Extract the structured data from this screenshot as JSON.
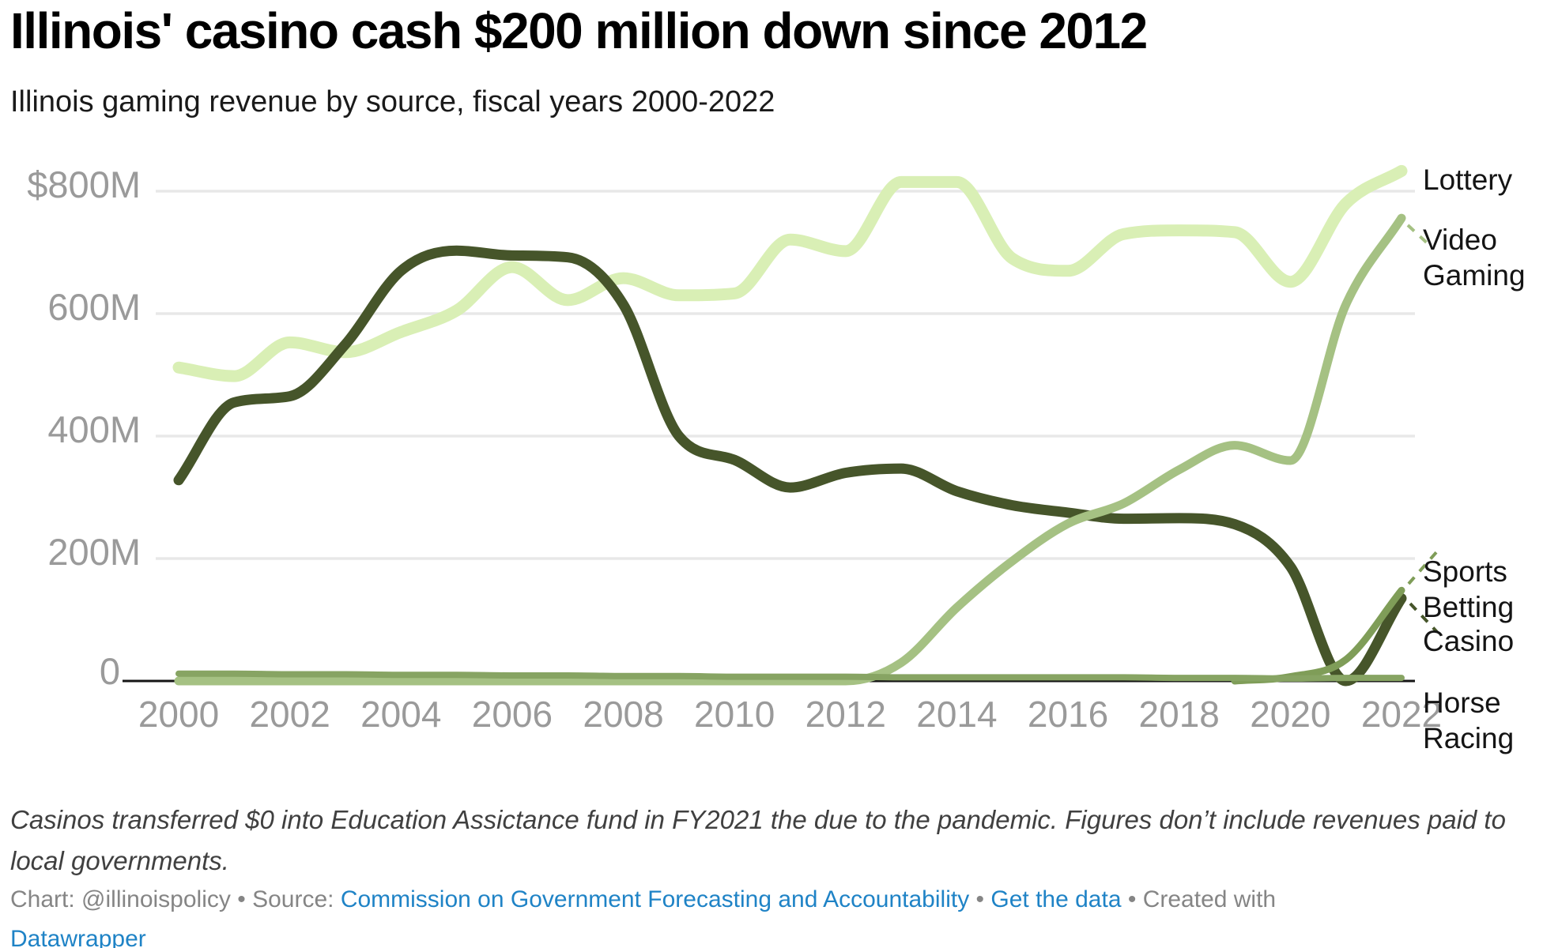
{
  "header": {
    "title": "Illinois' casino cash $200 million down since 2012",
    "subtitle": "Illinois gaming revenue by source, fiscal years 2000-2022"
  },
  "chart_data": {
    "type": "line",
    "title": "Illinois' casino cash $200 million down since 2012",
    "subtitle": "Illinois gaming revenue by source, fiscal years 2000-2022",
    "unit": "USD millions",
    "x": [
      2000,
      2001,
      2002,
      2003,
      2004,
      2005,
      2006,
      2007,
      2008,
      2009,
      2010,
      2011,
      2012,
      2013,
      2014,
      2015,
      2016,
      2017,
      2018,
      2019,
      2020,
      2021,
      2022
    ],
    "x_tick_labels": [
      "2000",
      "2002",
      "2004",
      "2006",
      "2008",
      "2010",
      "2012",
      "2014",
      "2016",
      "2018",
      "2020",
      "2022"
    ],
    "y_axis": {
      "tick_labels": [
        "$800M",
        "600M",
        "400M",
        "200M",
        "0"
      ],
      "tick_values": [
        800,
        600,
        400,
        200,
        0
      ],
      "ylim": [
        0,
        870
      ],
      "grid": true
    },
    "legend_position": "direct-labels-right",
    "series": [
      {
        "name": "Lottery",
        "label_lines": [
          "Lottery"
        ],
        "color": "#d9efb5",
        "stroke_width": 15,
        "values": [
          512,
          498,
          553,
          537,
          570,
          605,
          676,
          622,
          658,
          630,
          633,
          721,
          702,
          815,
          815,
          690,
          670,
          730,
          736,
          733,
          652,
          780,
          833
        ]
      },
      {
        "name": "Casino",
        "label_lines": [
          "Casino"
        ],
        "color": "#46552a",
        "stroke_width": 13,
        "values": [
          328,
          455,
          465,
          550,
          670,
          703,
          695,
          692,
          615,
          400,
          361,
          316,
          340,
          347,
          310,
          287,
          275,
          265,
          266,
          256,
          187,
          0,
          135
        ]
      },
      {
        "name": "Sports Betting",
        "label_lines": [
          "Sports",
          "Betting"
        ],
        "color": "#7f9d58",
        "stroke_width": 9,
        "values": [
          null,
          null,
          null,
          null,
          null,
          null,
          null,
          null,
          null,
          null,
          null,
          null,
          null,
          null,
          null,
          null,
          null,
          null,
          null,
          0,
          7,
          35,
          148
        ]
      },
      {
        "name": "Video Gaming",
        "label_lines": [
          "Video",
          "Gaming"
        ],
        "color": "#a5c183",
        "stroke_width": 11,
        "values": [
          0,
          0,
          0,
          0,
          0,
          0,
          0,
          0,
          0,
          0,
          0,
          0,
          0,
          30,
          120,
          196,
          257,
          290,
          345,
          385,
          360,
          615,
          756
        ]
      },
      {
        "name": "Horse Racing",
        "label_lines": [
          "Horse",
          "Racing"
        ],
        "color": "#87a463",
        "stroke_width": 8,
        "values": [
          12,
          12,
          11,
          11,
          10,
          10,
          9,
          9,
          8,
          8,
          7,
          7,
          7,
          6,
          6,
          6,
          6,
          6,
          5,
          5,
          4,
          5,
          5
        ]
      }
    ]
  },
  "footnote": "Casinos transferred $0 into Education Assictance fund in FY2021 the due to the pandemic. Figures don’t include revenues paid to local governments.",
  "credits": {
    "parts": [
      {
        "text": "Chart: @illinoispolicy",
        "type": "text"
      },
      {
        "text": " • ",
        "type": "sep"
      },
      {
        "text": "Source: ",
        "type": "text"
      },
      {
        "text": "Commission on Government Forecasting and Accountability",
        "type": "link"
      },
      {
        "text": " • ",
        "type": "sep"
      },
      {
        "text": "Get the data",
        "type": "link"
      },
      {
        "text": " • ",
        "type": "sep"
      },
      {
        "text": "Created with ",
        "type": "text"
      },
      {
        "text": "Datawrapper",
        "type": "link",
        "break_before": true
      }
    ]
  }
}
